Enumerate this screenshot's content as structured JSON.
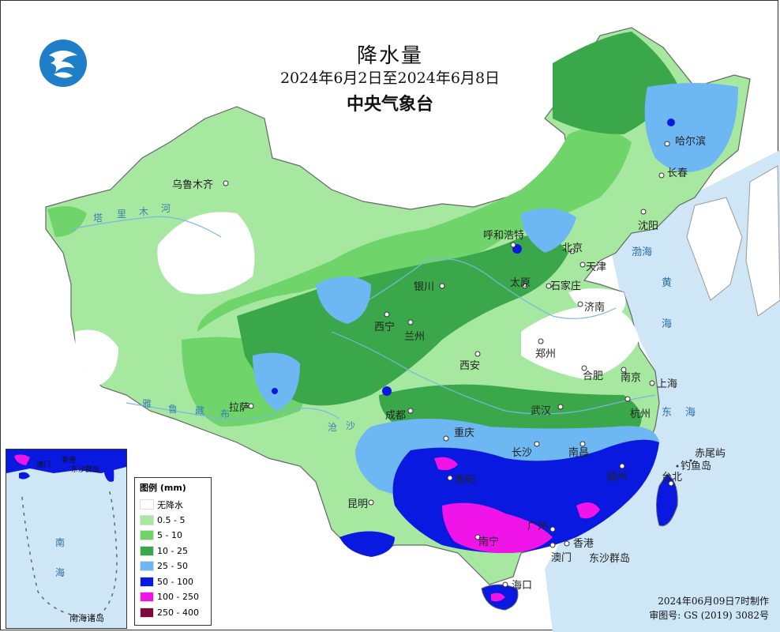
{
  "header": {
    "title": "降水量",
    "date_range": "2024年6月2日至2024年6月8日",
    "agency": "中央气象台"
  },
  "legend": {
    "title": "图例 (mm)",
    "items": [
      {
        "label": "无降水",
        "color": "#ffffff"
      },
      {
        "label": "0.5 - 5",
        "color": "#a6e8a0"
      },
      {
        "label": "5 - 10",
        "color": "#6fd46a"
      },
      {
        "label": "10 - 25",
        "color": "#3aa84a"
      },
      {
        "label": "25 - 50",
        "color": "#6db7f2"
      },
      {
        "label": "50 - 100",
        "color": "#0a19e0"
      },
      {
        "label": "100 - 250",
        "color": "#f014e8"
      },
      {
        "label": "250 - 400",
        "color": "#7a0a3c"
      }
    ]
  },
  "cities": {
    "urumqi": "乌鲁木齐",
    "harbin": "哈尔滨",
    "changchun": "长春",
    "shenyang": "沈阳",
    "hohhot": "呼和浩特",
    "beijing": "北京",
    "tianjin": "天津",
    "yinchuan": "银川",
    "taiyuan": "太原",
    "shijiazhuang": "石家庄",
    "jinan": "济南",
    "xining": "西宁",
    "lanzhou": "兰州",
    "zhengzhou": "郑州",
    "xian": "西安",
    "hefei": "合肥",
    "nanjing": "南京",
    "shanghai": "上海",
    "lhasa": "拉萨",
    "chengdu": "成都",
    "wuhan": "武汉",
    "hangzhou": "杭州",
    "chongqing": "重庆",
    "changsha": "长沙",
    "nanchang": "南昌",
    "fuzhou": "福州",
    "taipei": "台北",
    "guiyang": "贵阳",
    "kunming": "昆明",
    "nanning": "南宁",
    "guangzhou": "广州",
    "hongkong": "香港",
    "macau": "澳门",
    "haikou": "海口"
  },
  "places": {
    "chiweiyu": "赤尾屿",
    "diaoyudao": "钓鱼岛",
    "dongsha": "东沙群岛"
  },
  "seas": {
    "bohai": "渤海",
    "huanghai_1": "黄",
    "huanghai_2": "海",
    "donghai_1": "东",
    "donghai_2": "海"
  },
  "rivers": {
    "tarim_1": "塔",
    "tarim_2": "里",
    "tarim_3": "木",
    "tarim_4": "河",
    "yarlung_1": "雅",
    "yarlung_2": "鲁",
    "yarlung_3": "藏",
    "yarlung_4": "布",
    "nujiang_1": "沧",
    "nujiang_2": "沙"
  },
  "inset": {
    "label": "南海诸岛",
    "sea_1": "南",
    "sea_2": "海",
    "hk": "香港",
    "macau": "澳门",
    "dongsha": "东沙群岛"
  },
  "footer": {
    "made": "2024年06月09日7时制作",
    "approval": "审图号: GS (2019) 3082号"
  }
}
